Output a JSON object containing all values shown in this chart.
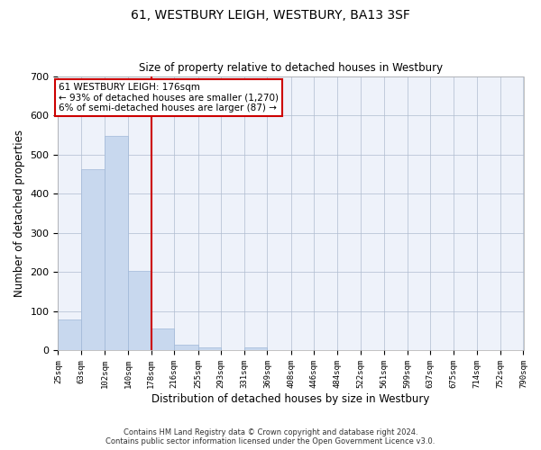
{
  "title": "61, WESTBURY LEIGH, WESTBURY, BA13 3SF",
  "subtitle": "Size of property relative to detached houses in Westbury",
  "xlabel": "Distribution of detached houses by size in Westbury",
  "ylabel": "Number of detached properties",
  "bar_color": "#c8d8ee",
  "bar_edge_color": "#a0b8d8",
  "background_color": "#eef2fa",
  "grid_color": "#b0bcd0",
  "bins": [
    25,
    63,
    102,
    140,
    178,
    216,
    255,
    293,
    331,
    369,
    408,
    446,
    484,
    522,
    561,
    599,
    637,
    675,
    714,
    752,
    790
  ],
  "bin_labels": [
    "25sqm",
    "63sqm",
    "102sqm",
    "140sqm",
    "178sqm",
    "216sqm",
    "255sqm",
    "293sqm",
    "331sqm",
    "369sqm",
    "408sqm",
    "446sqm",
    "484sqm",
    "522sqm",
    "561sqm",
    "599sqm",
    "637sqm",
    "675sqm",
    "714sqm",
    "752sqm",
    "790sqm"
  ],
  "counts": [
    78,
    462,
    548,
    204,
    57,
    14,
    9,
    0,
    8,
    0,
    0,
    0,
    0,
    0,
    0,
    0,
    0,
    0,
    0,
    0
  ],
  "vline_x": 178,
  "annotation_title": "61 WESTBURY LEIGH: 176sqm",
  "annotation_line1": "← 93% of detached houses are smaller (1,270)",
  "annotation_line2": "6% of semi-detached houses are larger (87) →",
  "annotation_box_color": "#ffffff",
  "annotation_border_color": "#cc0000",
  "vline_color": "#cc0000",
  "ylim": [
    0,
    700
  ],
  "yticks": [
    0,
    100,
    200,
    300,
    400,
    500,
    600,
    700
  ],
  "footer1": "Contains HM Land Registry data © Crown copyright and database right 2024.",
  "footer2": "Contains public sector information licensed under the Open Government Licence v3.0."
}
